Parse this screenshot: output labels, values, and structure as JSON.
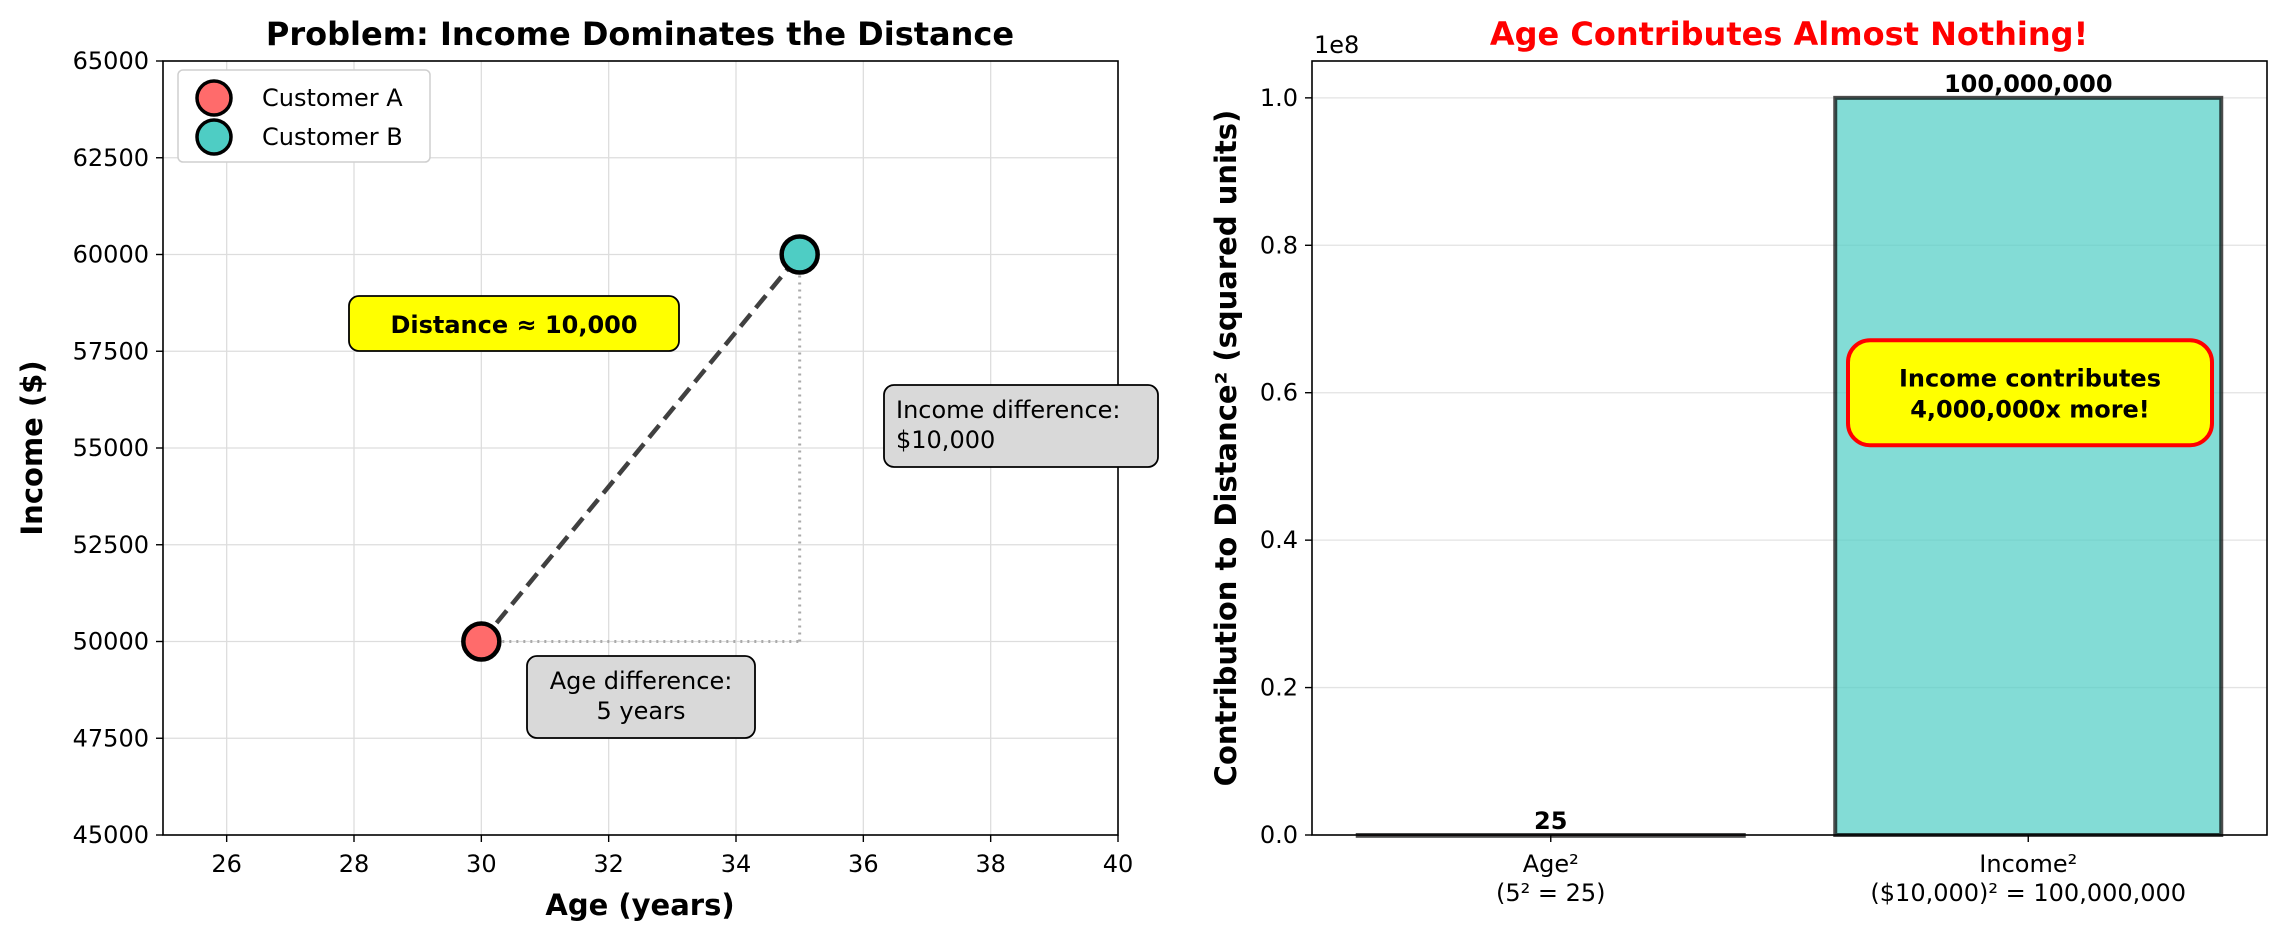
{
  "chart_data": [
    {
      "type": "scatter",
      "title": "Problem: Income Dominates the Distance",
      "xlabel": "Age (years)",
      "ylabel": "Income ($)",
      "xlim": [
        25,
        40
      ],
      "ylim": [
        45000,
        65000
      ],
      "xticks": [
        26,
        28,
        30,
        32,
        34,
        36,
        38,
        40
      ],
      "yticks": [
        45000,
        47500,
        50000,
        52500,
        55000,
        57500,
        60000,
        62500,
        65000
      ],
      "grid": true,
      "legend_position": "top-left",
      "series": [
        {
          "name": "Customer A",
          "x": [
            30
          ],
          "y": [
            50000
          ],
          "color": "#ff6b6b"
        },
        {
          "name": "Customer B",
          "x": [
            35
          ],
          "y": [
            60000
          ],
          "color": "#4ecdc4"
        }
      ],
      "distance_label": "Distance ≈ 10,000",
      "age_diff_label": [
        "Age difference:",
        "5 years"
      ],
      "income_diff_label": [
        "Income difference:",
        "$10,000"
      ]
    },
    {
      "type": "bar",
      "title": "Age Contributes Almost Nothing!",
      "ylabel": "Contribution to Distance² (squared units)",
      "categories": [
        [
          "Age²",
          "(5² = 25)"
        ],
        [
          "Income²",
          "($10,000)² = 100,000,000"
        ]
      ],
      "values": [
        25,
        100000000
      ],
      "value_labels": [
        "25",
        "100,000,000"
      ],
      "ylim": [
        0,
        105000000
      ],
      "yticks": [
        0,
        20000000,
        40000000,
        60000000,
        80000000,
        100000000
      ],
      "ytick_labels": [
        "0.0",
        "0.2",
        "0.4",
        "0.6",
        "0.8",
        "1.0"
      ],
      "offset_label": "1e8",
      "grid": true,
      "bar_colors": [
        "#ff6b6b",
        "#4ecdc4"
      ],
      "callout": [
        "Income contributes",
        "4,000,000x more!"
      ],
      "callout_value": 60000000
    }
  ],
  "colors": {
    "customer_a": "#ff6b6b",
    "customer_b": "#4ecdc4",
    "highlight_yellow": "#ffff00",
    "title_red": "#ff0000",
    "annotation_gray": "#d9d9d9"
  }
}
